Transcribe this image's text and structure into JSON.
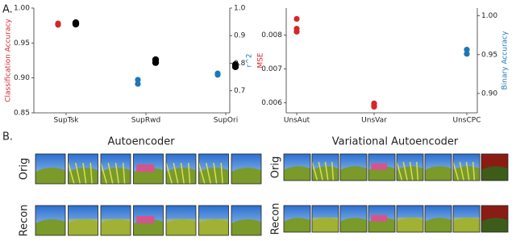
{
  "panel_labels": [
    "A.",
    "B."
  ],
  "chart_data": [
    {
      "type": "scatter",
      "categories": [
        "SupTsk",
        "SupRwd",
        "SupOri"
      ],
      "ylabel": "Classification Accuracy",
      "ylabel_color": "#d62728",
      "y2label": "r^2",
      "y2label_color": "#1f77b4",
      "ylim": [
        0.85,
        1.0
      ],
      "yticks": [
        0.85,
        {
          "value": 0.9,
          "label": "0.90"
        },
        0.95,
        {
          "value": 1.0,
          "label": "1.00"
        }
      ],
      "y2lim": [
        0.62,
        1.0
      ],
      "y2ticks": [
        0.7,
        0.8,
        0.9,
        {
          "value": 1.0,
          "label": "1.0"
        }
      ],
      "series": [
        {
          "color": "#d62728",
          "values": [
            0.978,
            null,
            null
          ]
        },
        {
          "color": "#d62728",
          "values": [
            0.976,
            null,
            null
          ]
        },
        {
          "color": "#000000",
          "values": [
            0.979,
            0.926,
            0.919
          ]
        },
        {
          "color": "#000000",
          "values": [
            0.977,
            0.922,
            0.916
          ]
        },
        {
          "color": "#1f77b4",
          "axis": "y2",
          "values": [
            null,
            0.74,
            0.763
          ]
        },
        {
          "color": "#1f77b4",
          "axis": "y2",
          "values": [
            null,
            0.725,
            0.758
          ]
        }
      ]
    },
    {
      "type": "scatter",
      "categories": [
        "UnsAut",
        "UnsVar",
        "UnsCPC"
      ],
      "ylabel": "MSE",
      "ylabel_color": "#d62728",
      "y2label": "Binary Accuracy",
      "y2label_color": "#1f77b4",
      "ylim": [
        0.0057,
        0.0088
      ],
      "yticks": [
        0.006,
        0.007,
        0.008
      ],
      "y2lim": [
        0.875,
        1.01
      ],
      "y2ticks": [
        {
          "value": 0.9,
          "label": "0.90"
        },
        0.95,
        {
          "value": 1.0,
          "label": "1.00"
        }
      ],
      "series": [
        {
          "color": "#d62728",
          "values": [
            0.00848,
            0.00598,
            null
          ]
        },
        {
          "color": "#d62728",
          "values": [
            0.00819,
            0.00592,
            null
          ]
        },
        {
          "color": "#d62728",
          "values": [
            0.0081,
            0.00588,
            null
          ]
        },
        {
          "color": "#1f77b4",
          "axis": "y2",
          "values": [
            null,
            null,
            0.9564
          ]
        },
        {
          "color": "#1f77b4",
          "axis": "y2",
          "values": [
            null,
            null,
            0.951
          ]
        }
      ]
    }
  ],
  "image_grids": [
    {
      "title": "Autoencoder",
      "row_labels": [
        "Orig",
        "Recon"
      ]
    },
    {
      "title": "Variational Autoencoder",
      "row_labels": [
        "Orig",
        "Recon"
      ]
    }
  ]
}
